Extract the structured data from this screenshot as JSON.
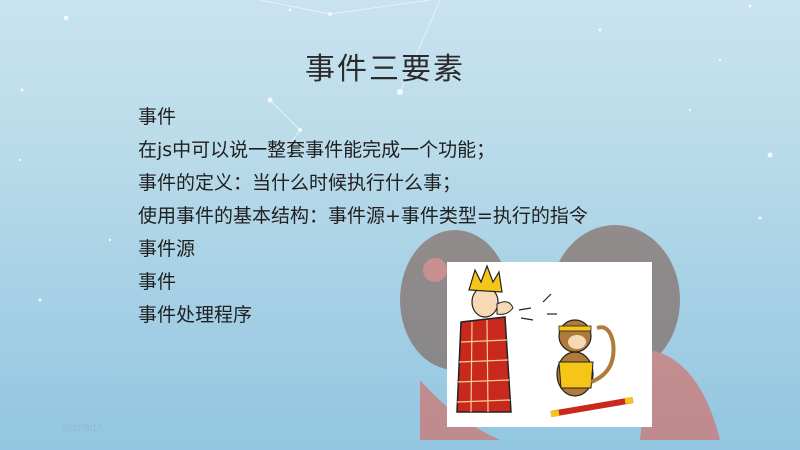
{
  "slide": {
    "title": "事件三要素",
    "bullets": [
      "事件",
      "在js中可以说一整套事件能完成一个功能；",
      "事件的定义：当什么时候执行什么事；",
      "使用事件的基本结构：事件源+事件类型=执行的指令",
      "事件源",
      "事件",
      "事件处理程序"
    ],
    "date": "2017/8/17"
  },
  "colors": {
    "sky_top": "#c9e3f0",
    "sky_bottom": "#92c6e0",
    "title_text": "#2b2b2b",
    "body_text": "#1f1f1f",
    "cartoon_red": "#c8281e",
    "cartoon_yellow": "#f5c518"
  },
  "illustration": {
    "subject": "cartoon-monk-and-monkey-king"
  }
}
